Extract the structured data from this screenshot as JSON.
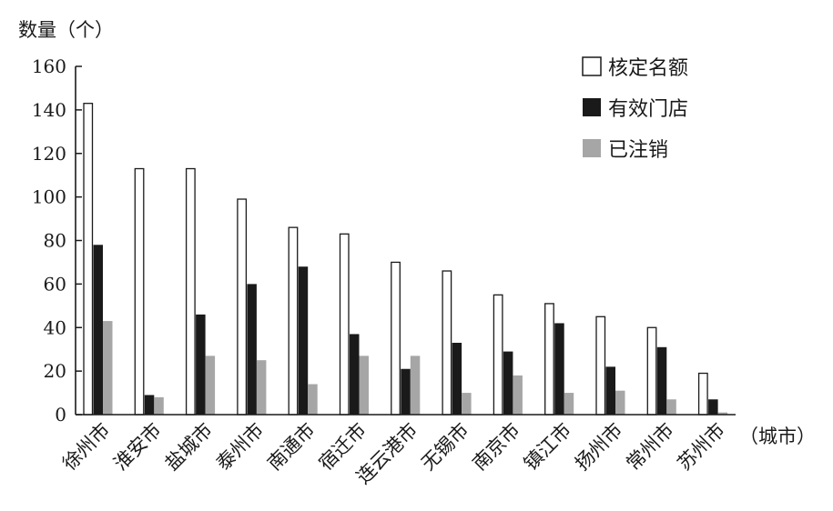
{
  "chart_data": {
    "type": "bar",
    "ylabel": "数量（个）",
    "xlabel": "（城市）",
    "ylim": [
      0,
      160
    ],
    "yticks": [
      0,
      20,
      40,
      60,
      80,
      100,
      120,
      140,
      160
    ],
    "grid": false,
    "legend_position": "top-right",
    "categories": [
      "徐州市",
      "淮安市",
      "盐城市",
      "泰州市",
      "南通市",
      "宿迁市",
      "连云港市",
      "无锡市",
      "南京市",
      "镇江市",
      "扬州市",
      "常州市",
      "苏州市"
    ],
    "series": [
      {
        "name": "核定名额",
        "color": "#ffffff",
        "values": [
          143,
          113,
          113,
          99,
          86,
          83,
          70,
          66,
          55,
          51,
          45,
          40,
          19
        ]
      },
      {
        "name": "有效门店",
        "color": "#1a1a1a",
        "values": [
          78,
          9,
          46,
          60,
          68,
          37,
          21,
          33,
          29,
          42,
          22,
          31,
          7
        ]
      },
      {
        "name": "已注销",
        "color": "#a6a6a6",
        "values": [
          43,
          8,
          27,
          25,
          14,
          27,
          27,
          10,
          18,
          10,
          11,
          7,
          1
        ]
      }
    ]
  }
}
